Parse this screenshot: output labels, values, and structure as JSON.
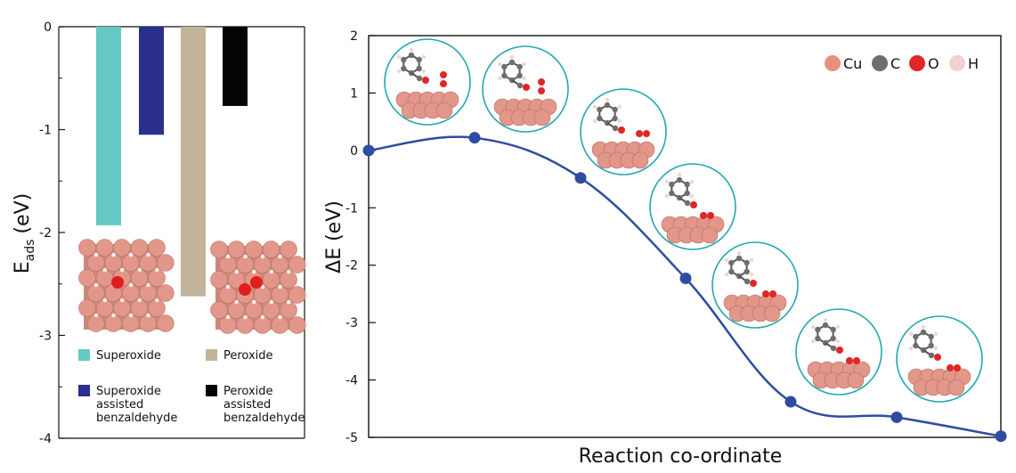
{
  "chart_data": [
    {
      "type": "bar",
      "ylabel_main": "E",
      "ylabel_sub": "ads",
      "ylabel_unit": "(eV)",
      "ylim": [
        -4,
        0
      ],
      "yticks": [
        0,
        -1,
        -2,
        -3,
        -4
      ],
      "ytick_labels": [
        "0",
        "-1",
        "-2",
        "-3",
        "-4"
      ],
      "categories": [
        "Superoxide",
        "Superoxide assisted benzaldehyde",
        "Peroxide",
        "Peroxide assisted benzaldehyde"
      ],
      "legend_lines": [
        [
          "Superoxide"
        ],
        [
          "Superoxide",
          "assisted",
          "benzaldehyde"
        ],
        [
          "Peroxide"
        ],
        [
          "Peroxide",
          "assisted",
          "benzaldehyde"
        ]
      ],
      "values": [
        -1.93,
        -1.05,
        -2.62,
        -0.77
      ],
      "colors": [
        "#66c8c2",
        "#2a2f8e",
        "#c1b49a",
        "#050505"
      ],
      "legend_position": "bottom"
    },
    {
      "type": "line",
      "ylabel": "ΔE (eV)",
      "xlabel": "Reaction co-ordinate",
      "ylim": [
        -5,
        2
      ],
      "yticks": [
        2,
        1,
        0,
        -1,
        -2,
        -3,
        -4,
        -5
      ],
      "ytick_labels": [
        "2",
        "1",
        "0",
        "-1",
        "-2",
        "-3",
        "-4",
        "-5"
      ],
      "series": [
        {
          "x": [
            0,
            1,
            2,
            3,
            4,
            5,
            6
          ],
          "values": [
            0.0,
            0.22,
            -0.48,
            -2.23,
            -4.38,
            -4.65,
            -4.98
          ],
          "color": "#2f4da0"
        }
      ],
      "legend": [
        {
          "label": "Cu",
          "color": "#e8907e"
        },
        {
          "label": "C",
          "color": "#6e6e6e"
        },
        {
          "label": "O",
          "color": "#e02626"
        },
        {
          "label": "H",
          "color": "#f2d0d0"
        }
      ],
      "legend_position": "top-right"
    }
  ]
}
